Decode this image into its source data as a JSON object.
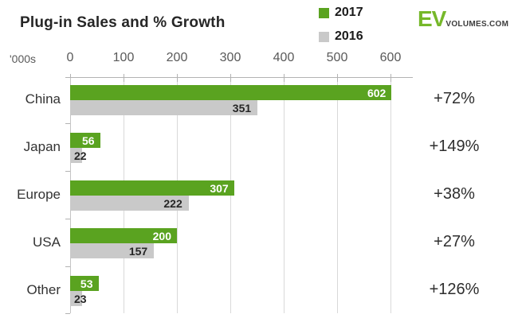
{
  "header": {
    "title": "Plug-in Sales and % Growth",
    "legend": [
      {
        "label": "2017",
        "color": "#5aa320"
      },
      {
        "label": "2016",
        "color": "#c9c9c9"
      }
    ],
    "logo": {
      "ev": "EV",
      "rest": "VOLUMES.COM",
      "ev_color": "#76b82a"
    }
  },
  "axis": {
    "unit_label": "'000s",
    "ticks": [
      0,
      100,
      200,
      300,
      400,
      500,
      600
    ]
  },
  "chart_data": {
    "type": "bar",
    "orientation": "horizontal",
    "title": "Plug-in Sales and % Growth",
    "xlabel": "'000s",
    "xlim": [
      0,
      600
    ],
    "grid": true,
    "legend_position": "top",
    "categories": [
      "China",
      "Japan",
      "Europe",
      "USA",
      "Other"
    ],
    "series": [
      {
        "name": "2017",
        "color": "#5aa320",
        "values": [
          602,
          56,
          307,
          200,
          53
        ]
      },
      {
        "name": "2016",
        "color": "#c9c9c9",
        "values": [
          351,
          22,
          222,
          157,
          23
        ]
      }
    ],
    "growth_labels": [
      "+72%",
      "+149%",
      "+38%",
      "+27%",
      "+126%"
    ]
  }
}
